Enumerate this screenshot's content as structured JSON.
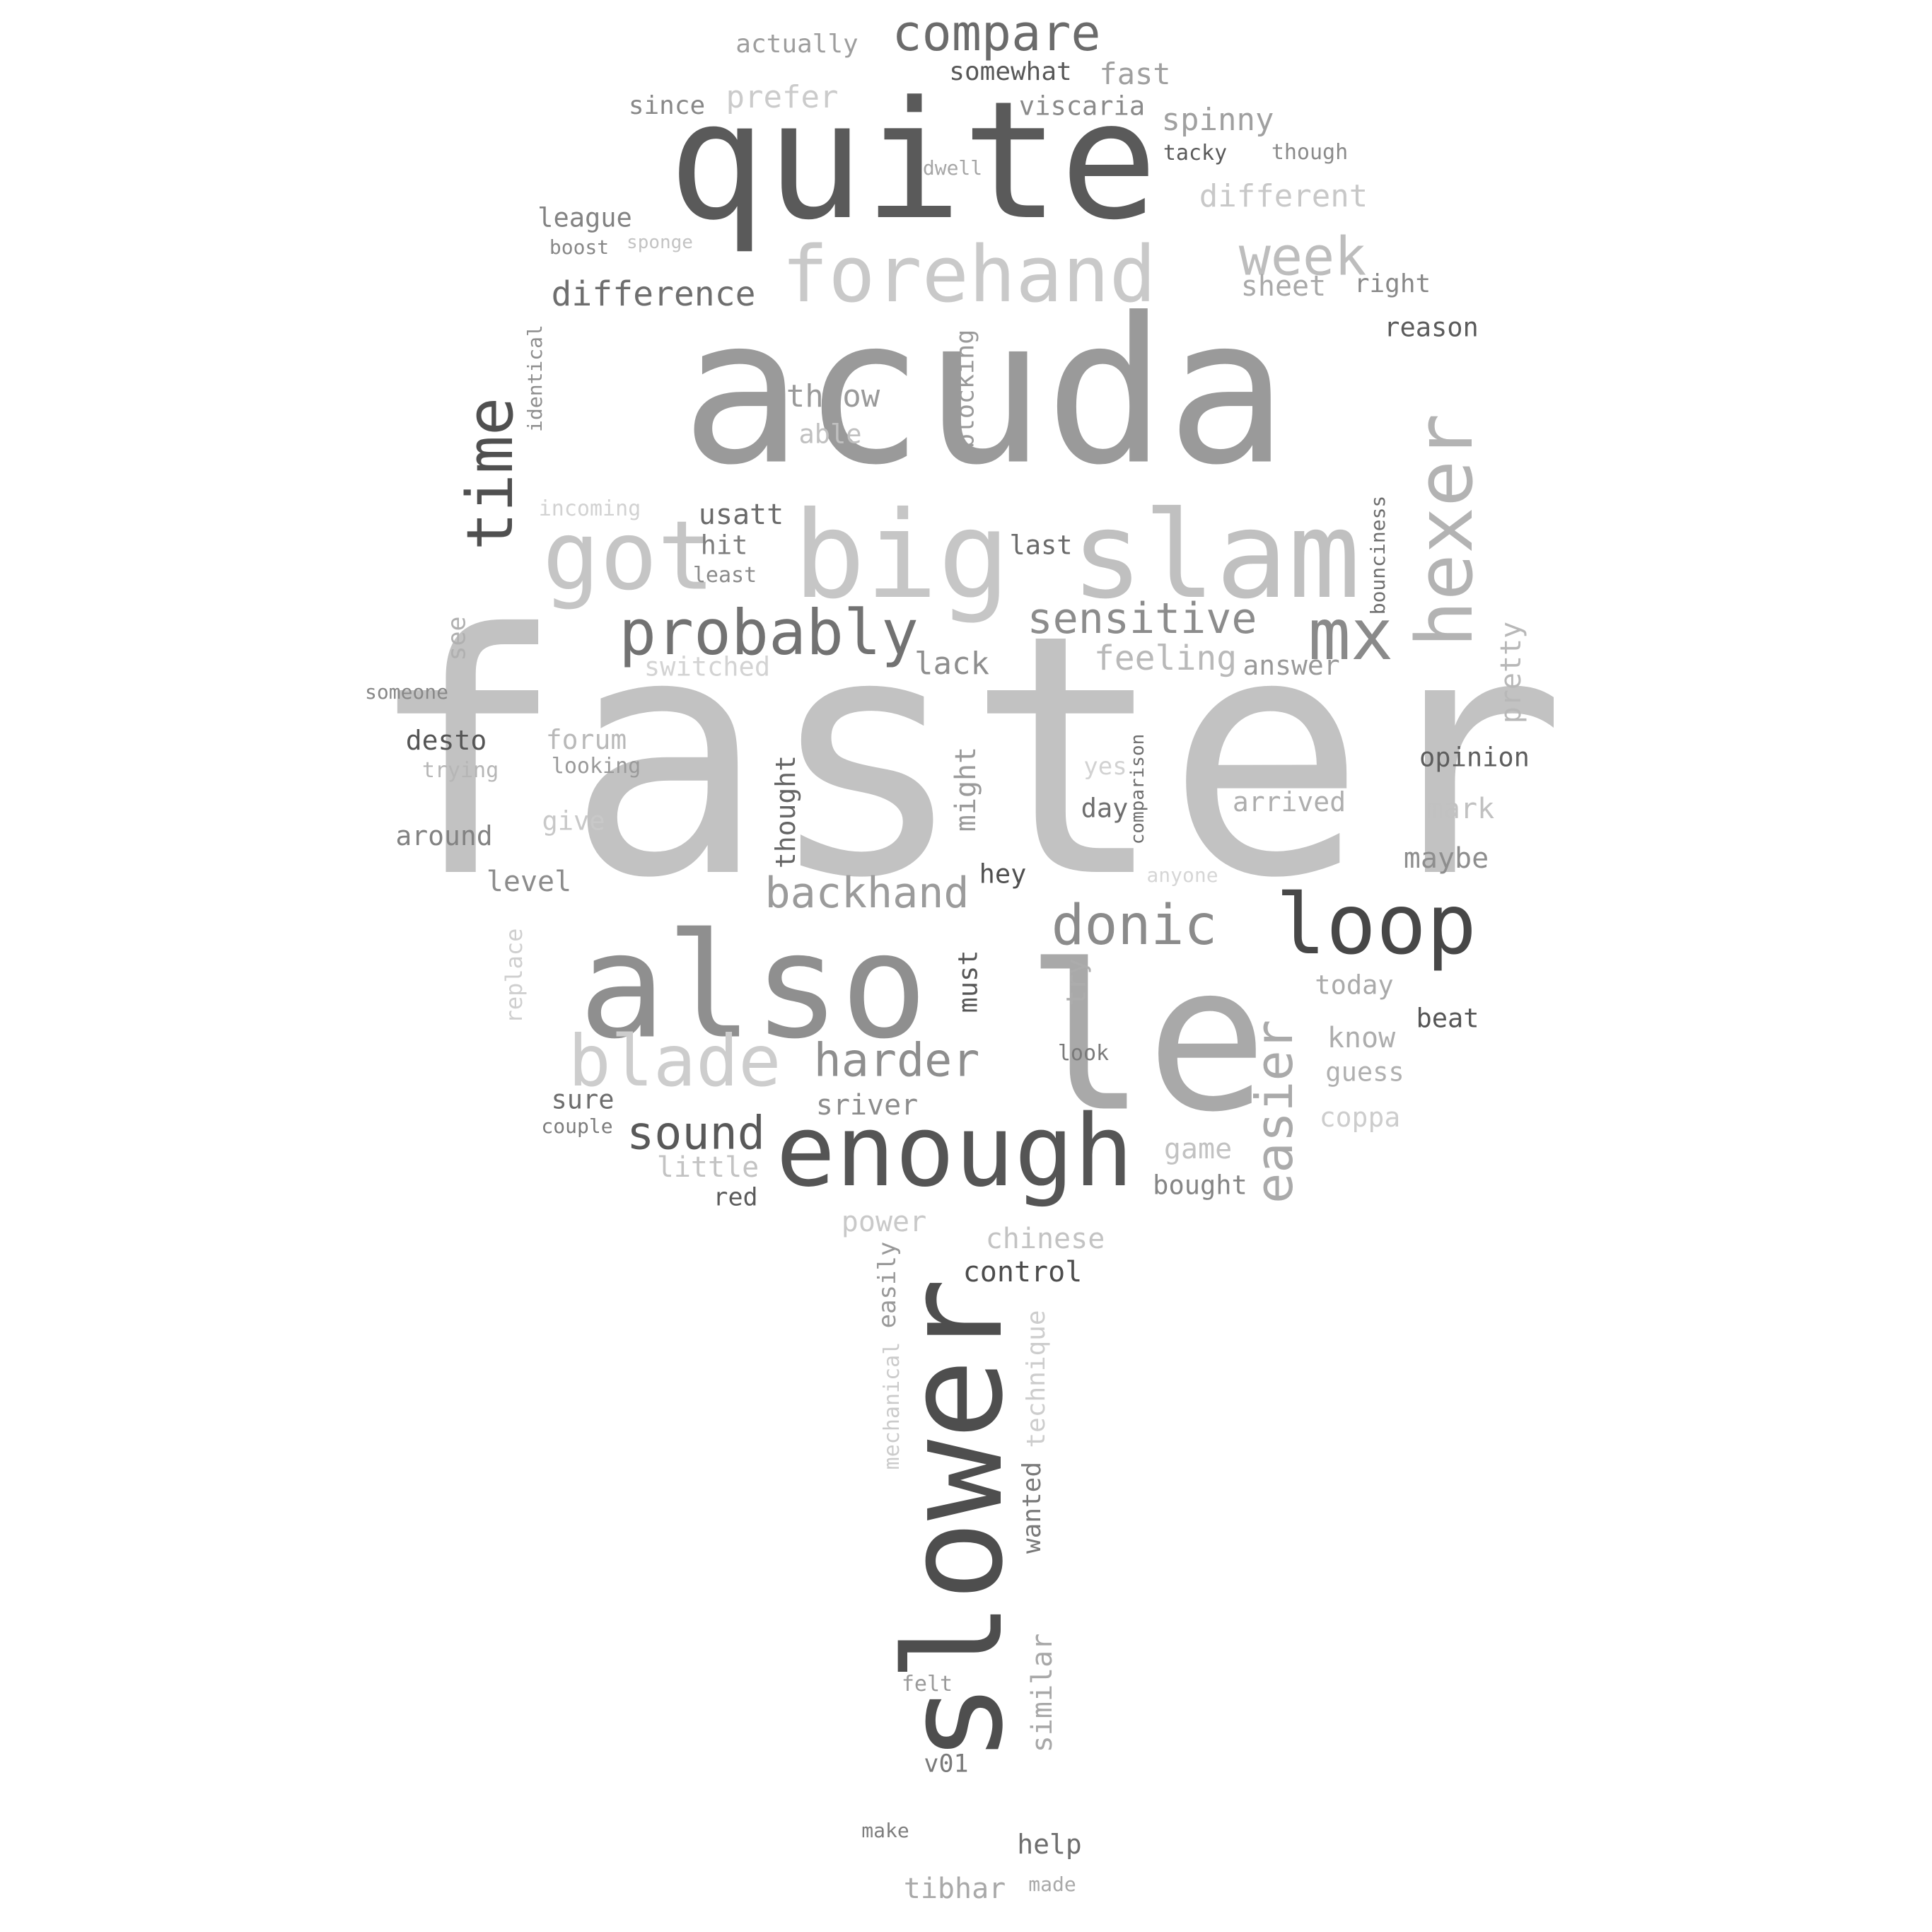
{
  "words": [
    {
      "text": "faster",
      "vertical": false,
      "color": "#c2c2c2"
    },
    {
      "text": "acuda",
      "vertical": false,
      "color": "#9a9a9a"
    },
    {
      "text": "le",
      "vertical": false,
      "color": "#a9a9a9"
    },
    {
      "text": "slower",
      "vertical": true,
      "color": "#4e4e4e"
    },
    {
      "text": "quite",
      "vertical": false,
      "color": "#5a5a5a"
    },
    {
      "text": "also",
      "vertical": false,
      "color": "#8f8f8f"
    },
    {
      "text": "big",
      "vertical": false,
      "color": "#c6c6c6"
    },
    {
      "text": "slam",
      "vertical": false,
      "color": "#c0c0c0"
    },
    {
      "text": "enough",
      "vertical": false,
      "color": "#555555"
    },
    {
      "text": "loop",
      "vertical": false,
      "color": "#474747"
    },
    {
      "text": "forehand",
      "vertical": false,
      "color": "#c9c9c9"
    },
    {
      "text": "hexer",
      "vertical": true,
      "color": "#b3b3b3"
    },
    {
      "text": "time",
      "vertical": true,
      "color": "#505050"
    },
    {
      "text": "got",
      "vertical": false,
      "color": "#c5c5c5"
    },
    {
      "text": "blade",
      "vertical": false,
      "color": "#cdcdcd"
    },
    {
      "text": "probably",
      "vertical": false,
      "color": "#727272"
    },
    {
      "text": "mx",
      "vertical": false,
      "color": "#8a8a8a"
    },
    {
      "text": "donic",
      "vertical": false,
      "color": "#8b8b8b"
    },
    {
      "text": "compare",
      "vertical": false,
      "color": "#6b6b6b"
    },
    {
      "text": "easier",
      "vertical": true,
      "color": "#aaaaaa"
    },
    {
      "text": "sensitive",
      "vertical": false,
      "color": "#8c8c8c"
    },
    {
      "text": "harder",
      "vertical": false,
      "color": "#8e8e8e"
    },
    {
      "text": "week",
      "vertical": false,
      "color": "#bdbdbd"
    },
    {
      "text": "backhand",
      "vertical": false,
      "color": "#9b9b9b"
    },
    {
      "text": "sound",
      "vertical": false,
      "color": "#595959"
    },
    {
      "text": "difference",
      "vertical": false,
      "color": "#6e6e6e"
    },
    {
      "text": "actually",
      "vertical": false,
      "color": "#9e9e9e"
    },
    {
      "text": "somewhat",
      "vertical": false,
      "color": "#585858"
    },
    {
      "text": "fast",
      "vertical": false,
      "color": "#9f9f9f"
    },
    {
      "text": "since",
      "vertical": false,
      "color": "#888888"
    },
    {
      "text": "prefer",
      "vertical": false,
      "color": "#cbcbcb"
    },
    {
      "text": "viscaria",
      "vertical": false,
      "color": "#8a8a8a"
    },
    {
      "text": "spinny",
      "vertical": false,
      "color": "#a0a0a0"
    },
    {
      "text": "dwell",
      "vertical": false,
      "color": "#a6a6a6"
    },
    {
      "text": "tacky",
      "vertical": false,
      "color": "#5a5a5a"
    },
    {
      "text": "though",
      "vertical": false,
      "color": "#8b8b8b"
    },
    {
      "text": "different",
      "vertical": false,
      "color": "#c8c8c8"
    },
    {
      "text": "league",
      "vertical": false,
      "color": "#838383"
    },
    {
      "text": "boost",
      "vertical": false,
      "color": "#888888"
    },
    {
      "text": "sponge",
      "vertical": false,
      "color": "#c3c3c3"
    },
    {
      "text": "sheet",
      "vertical": false,
      "color": "#a9a9a9"
    },
    {
      "text": "right",
      "vertical": false,
      "color": "#888888"
    },
    {
      "text": "reason",
      "vertical": false,
      "color": "#5b5b5b"
    },
    {
      "text": "identical",
      "vertical": true,
      "color": "#8e8e8e"
    },
    {
      "text": "blocking",
      "vertical": true,
      "color": "#9a9a9a"
    },
    {
      "text": "throw",
      "vertical": false,
      "color": "#9a9a9a"
    },
    {
      "text": "able",
      "vertical": false,
      "color": "#c0c0c0"
    },
    {
      "text": "incoming",
      "vertical": false,
      "color": "#d2d2d2"
    },
    {
      "text": "usatt",
      "vertical": false,
      "color": "#6a6a6a"
    },
    {
      "text": "hit",
      "vertical": false,
      "color": "#7c7c7c"
    },
    {
      "text": "least",
      "vertical": false,
      "color": "#8b8b8b"
    },
    {
      "text": "last",
      "vertical": false,
      "color": "#6a6a6a"
    },
    {
      "text": "bounciness",
      "vertical": true,
      "color": "#6e6e6e"
    },
    {
      "text": "see",
      "vertical": true,
      "color": "#b0b0b0"
    },
    {
      "text": "switched",
      "vertical": false,
      "color": "#d3d3d3"
    },
    {
      "text": "lack",
      "vertical": false,
      "color": "#8e8e8e"
    },
    {
      "text": "feeling",
      "vertical": false,
      "color": "#b9b9b9"
    },
    {
      "text": "answer",
      "vertical": false,
      "color": "#999999"
    },
    {
      "text": "pretty",
      "vertical": true,
      "color": "#b8b8b8"
    },
    {
      "text": "someone",
      "vertical": false,
      "color": "#888888"
    },
    {
      "text": "desto",
      "vertical": false,
      "color": "#555555"
    },
    {
      "text": "forum",
      "vertical": false,
      "color": "#b9b9b9"
    },
    {
      "text": "trying",
      "vertical": false,
      "color": "#b6b6b6"
    },
    {
      "text": "looking",
      "vertical": false,
      "color": "#9a9a9a"
    },
    {
      "text": "thought",
      "vertical": true,
      "color": "#656565"
    },
    {
      "text": "might",
      "vertical": true,
      "color": "#9b9b9b"
    },
    {
      "text": "yes",
      "vertical": false,
      "color": "#d2d2d2"
    },
    {
      "text": "comparison",
      "vertical": true,
      "color": "#6e6e6e"
    },
    {
      "text": "opinion",
      "vertical": false,
      "color": "#5e5e5e"
    },
    {
      "text": "arrived",
      "vertical": false,
      "color": "#aeaeae"
    },
    {
      "text": "mark",
      "vertical": false,
      "color": "#c1c1c1"
    },
    {
      "text": "give",
      "vertical": false,
      "color": "#c8c8c8"
    },
    {
      "text": "around",
      "vertical": false,
      "color": "#828282"
    },
    {
      "text": "day",
      "vertical": false,
      "color": "#6e6e6e"
    },
    {
      "text": "maybe",
      "vertical": false,
      "color": "#8e8e8e"
    },
    {
      "text": "level",
      "vertical": false,
      "color": "#8c8c8c"
    },
    {
      "text": "hey",
      "vertical": false,
      "color": "#505050"
    },
    {
      "text": "anyone",
      "vertical": false,
      "color": "#d6d6d6"
    },
    {
      "text": "replace",
      "vertical": true,
      "color": "#cfcfcf"
    },
    {
      "text": "must",
      "vertical": true,
      "color": "#575757"
    },
    {
      "text": "try",
      "vertical": true,
      "color": "#acacac"
    },
    {
      "text": "today",
      "vertical": false,
      "color": "#aaaaaa"
    },
    {
      "text": "beat",
      "vertical": false,
      "color": "#565656"
    },
    {
      "text": "know",
      "vertical": false,
      "color": "#adadad"
    },
    {
      "text": "look",
      "vertical": false,
      "color": "#7a7a7a"
    },
    {
      "text": "guess",
      "vertical": false,
      "color": "#b0b0b0"
    },
    {
      "text": "sriver",
      "vertical": false,
      "color": "#8c8c8c"
    },
    {
      "text": "sure",
      "vertical": false,
      "color": "#6e6e6e"
    },
    {
      "text": "couple",
      "vertical": false,
      "color": "#7c7c7c"
    },
    {
      "text": "coppa",
      "vertical": false,
      "color": "#cdcdcd"
    },
    {
      "text": "game",
      "vertical": false,
      "color": "#c2c2c2"
    },
    {
      "text": "little",
      "vertical": false,
      "color": "#c3c3c3"
    },
    {
      "text": "bought",
      "vertical": false,
      "color": "#858585"
    },
    {
      "text": "red",
      "vertical": false,
      "color": "#5b5b5b"
    },
    {
      "text": "power",
      "vertical": false,
      "color": "#c9c9c9"
    },
    {
      "text": "chinese",
      "vertical": false,
      "color": "#c3c3c3"
    },
    {
      "text": "control",
      "vertical": false,
      "color": "#4c4c4c"
    },
    {
      "text": "easily",
      "vertical": true,
      "color": "#999999"
    },
    {
      "text": "technique",
      "vertical": true,
      "color": "#cdcdcd"
    },
    {
      "text": "mechanical",
      "vertical": true,
      "color": "#cbcbcb"
    },
    {
      "text": "wanted",
      "vertical": true,
      "color": "#7a7a7a"
    },
    {
      "text": "similar",
      "vertical": true,
      "color": "#a8a8a8"
    },
    {
      "text": "felt",
      "vertical": false,
      "color": "#9a9a9a"
    },
    {
      "text": "v01",
      "vertical": false,
      "color": "#7a7a7a"
    },
    {
      "text": "make",
      "vertical": false,
      "color": "#7e7e7e"
    },
    {
      "text": "help",
      "vertical": false,
      "color": "#6e6e6e"
    },
    {
      "text": "tibhar",
      "vertical": false,
      "color": "#a9a9a9"
    },
    {
      "text": "made",
      "vertical": false,
      "color": "#a9a9a9"
    }
  ]
}
